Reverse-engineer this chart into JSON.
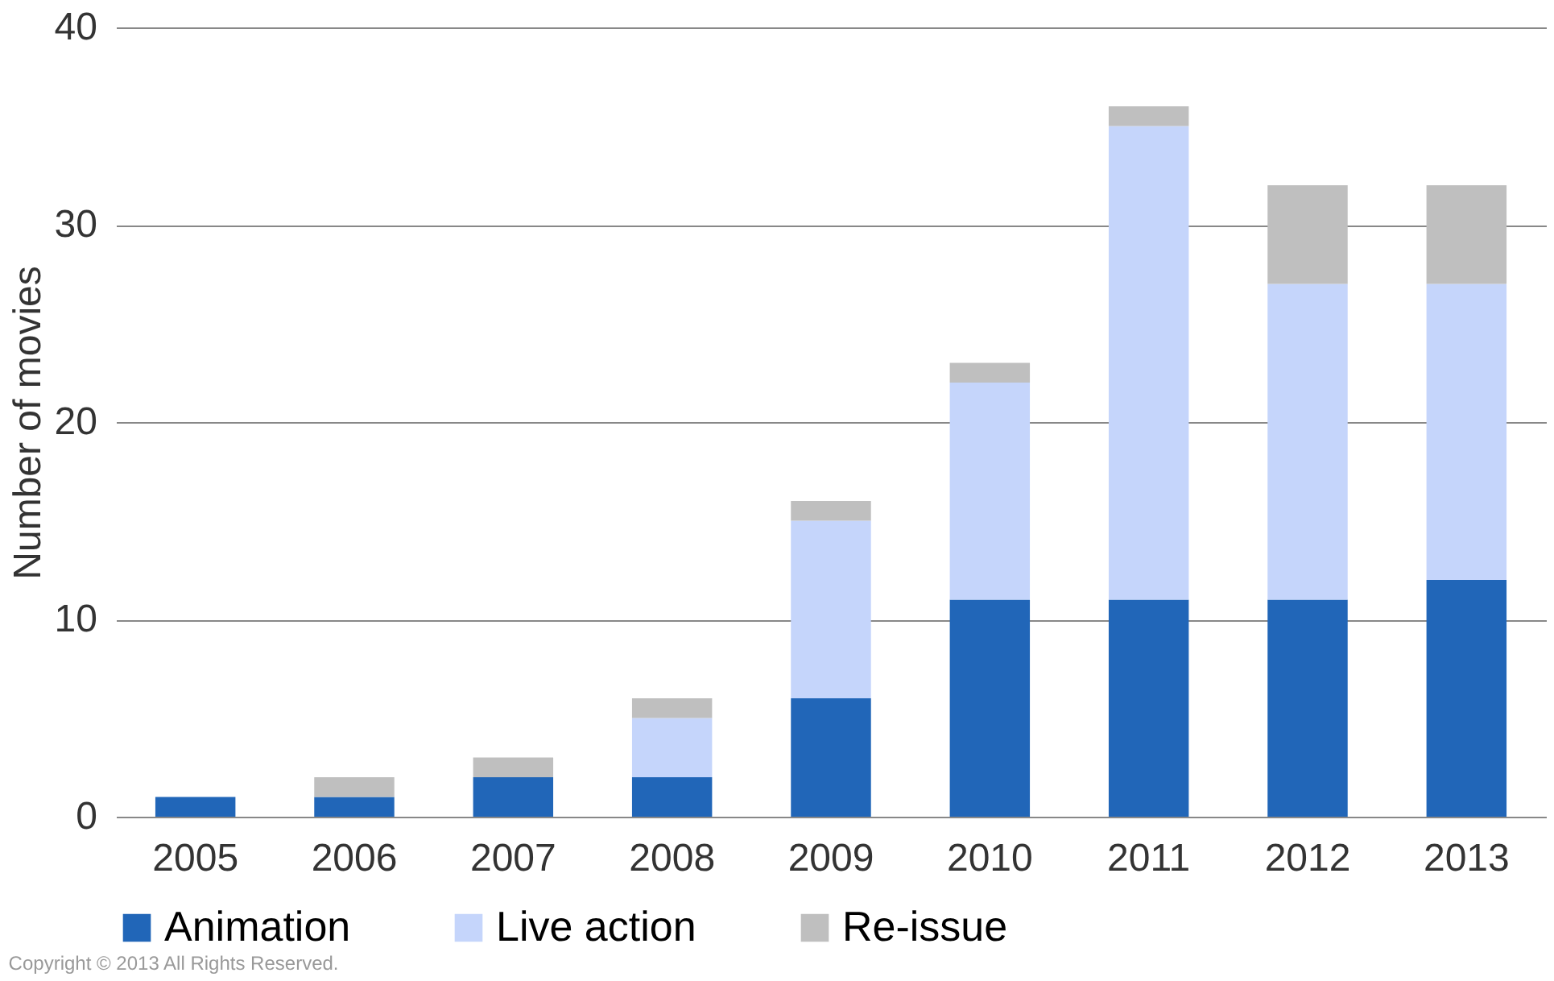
{
  "chart_data": {
    "type": "bar",
    "stacked": true,
    "ylabel": "Number of movies",
    "categories": [
      "2005",
      "2006",
      "2007",
      "2008",
      "2009",
      "2010",
      "2011",
      "2012",
      "2013"
    ],
    "series": [
      {
        "name": "Animation",
        "color": "#2166b8",
        "values": [
          1,
          1,
          2,
          2,
          6,
          11,
          11,
          11,
          12
        ]
      },
      {
        "name": "Live action",
        "color": "#c5d5fb",
        "values": [
          0,
          0,
          0,
          3,
          9,
          11,
          24,
          16,
          15
        ]
      },
      {
        "name": "Re-issue",
        "color": "#bfbfbf",
        "values": [
          0,
          1,
          1,
          1,
          1,
          1,
          1,
          5,
          5
        ]
      }
    ],
    "ylim": [
      0,
      40
    ],
    "yticks": [
      0,
      10,
      20,
      30,
      40
    ],
    "grid": "y",
    "legend": "bottom",
    "annotations": [
      "Copyright © 2013 All Rights Reserved."
    ]
  }
}
